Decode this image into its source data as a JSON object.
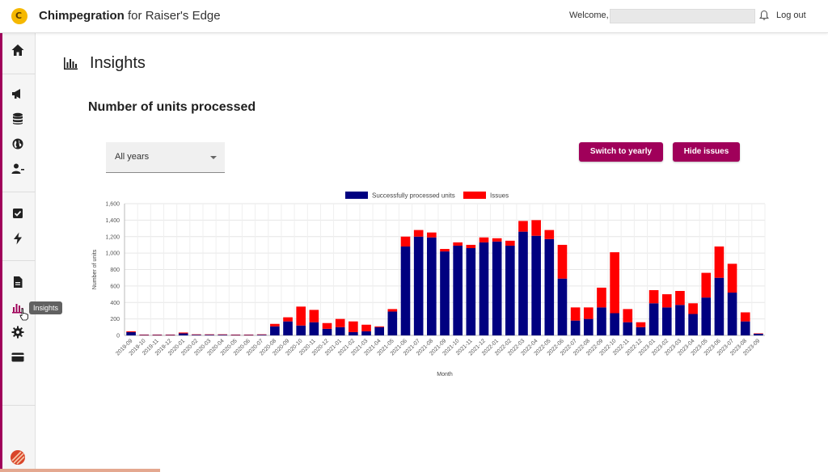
{
  "app": {
    "name": "Chimpegration",
    "subtitle": "for Raiser's Edge",
    "logo_letter": "C"
  },
  "header": {
    "welcome": "Welcome,",
    "logout": "Log out"
  },
  "sidebar": {
    "items": [
      {
        "icon": "home-icon"
      },
      {
        "icon": "megaphone-icon"
      },
      {
        "icon": "database-icon"
      },
      {
        "icon": "globe-icon"
      },
      {
        "icon": "user-minus-icon"
      },
      {
        "icon": "checkbox-icon"
      },
      {
        "icon": "lightning-icon"
      },
      {
        "icon": "document-icon"
      },
      {
        "icon": "insights-icon"
      },
      {
        "icon": "gear-icon"
      },
      {
        "icon": "credit-card-icon"
      }
    ],
    "tooltip": "Insights"
  },
  "page": {
    "title": "Insights",
    "section_title": "Number of units processed"
  },
  "filter": {
    "selected": "All years"
  },
  "buttons": {
    "switch_yearly": "Switch to yearly",
    "hide_issues": "Hide issues"
  },
  "colors": {
    "accent": "#a0005a",
    "success": "#000080",
    "issues": "#ff0000"
  },
  "chart_data": {
    "type": "bar",
    "stacked": true,
    "xlabel": "Month",
    "ylabel": "Number of units",
    "ylim": [
      0,
      1600
    ],
    "yticks": [
      "0",
      "200",
      "400",
      "600",
      "800",
      "1,000",
      "1,200",
      "1,400",
      "1,600"
    ],
    "legend_position": "top",
    "grid": true,
    "categories": [
      "2019-09",
      "2019-10",
      "2019-11",
      "2019-12",
      "2020-01",
      "2020-02",
      "2020-03",
      "2020-04",
      "2020-05",
      "2020-06",
      "2020-07",
      "2020-08",
      "2020-09",
      "2020-10",
      "2020-11",
      "2020-12",
      "2021-01",
      "2021-02",
      "2021-03",
      "2021-04",
      "2021-05",
      "2021-06",
      "2021-07",
      "2021-08",
      "2021-09",
      "2021-10",
      "2021-11",
      "2021-12",
      "2022-01",
      "2022-02",
      "2022-03",
      "2022-04",
      "2022-05",
      "2022-06",
      "2022-07",
      "2022-08",
      "2022-09",
      "2022-10",
      "2022-11",
      "2022-12",
      "2023-01",
      "2023-02",
      "2023-03",
      "2023-04",
      "2023-05",
      "2023-06",
      "2023-07",
      "2023-08",
      "2023-09"
    ],
    "series": [
      {
        "name": "Successfully processed units",
        "color": "#000080",
        "values": [
          40,
          5,
          5,
          5,
          25,
          8,
          8,
          8,
          5,
          5,
          8,
          110,
          170,
          120,
          160,
          80,
          100,
          40,
          50,
          100,
          290,
          1080,
          1200,
          1190,
          1020,
          1090,
          1060,
          1130,
          1140,
          1090,
          1260,
          1210,
          1170,
          690,
          180,
          200,
          340,
          270,
          160,
          100,
          390,
          340,
          370,
          260,
          460,
          700,
          520,
          170,
          20
        ]
      },
      {
        "name": "Issues",
        "color": "#ff0000",
        "values": [
          10,
          5,
          5,
          5,
          10,
          5,
          5,
          5,
          5,
          5,
          5,
          30,
          50,
          230,
          150,
          70,
          100,
          130,
          80,
          10,
          30,
          120,
          80,
          60,
          30,
          40,
          40,
          60,
          40,
          60,
          130,
          190,
          110,
          410,
          160,
          140,
          240,
          740,
          160,
          60,
          160,
          160,
          170,
          130,
          300,
          380,
          350,
          110,
          5
        ]
      }
    ]
  }
}
